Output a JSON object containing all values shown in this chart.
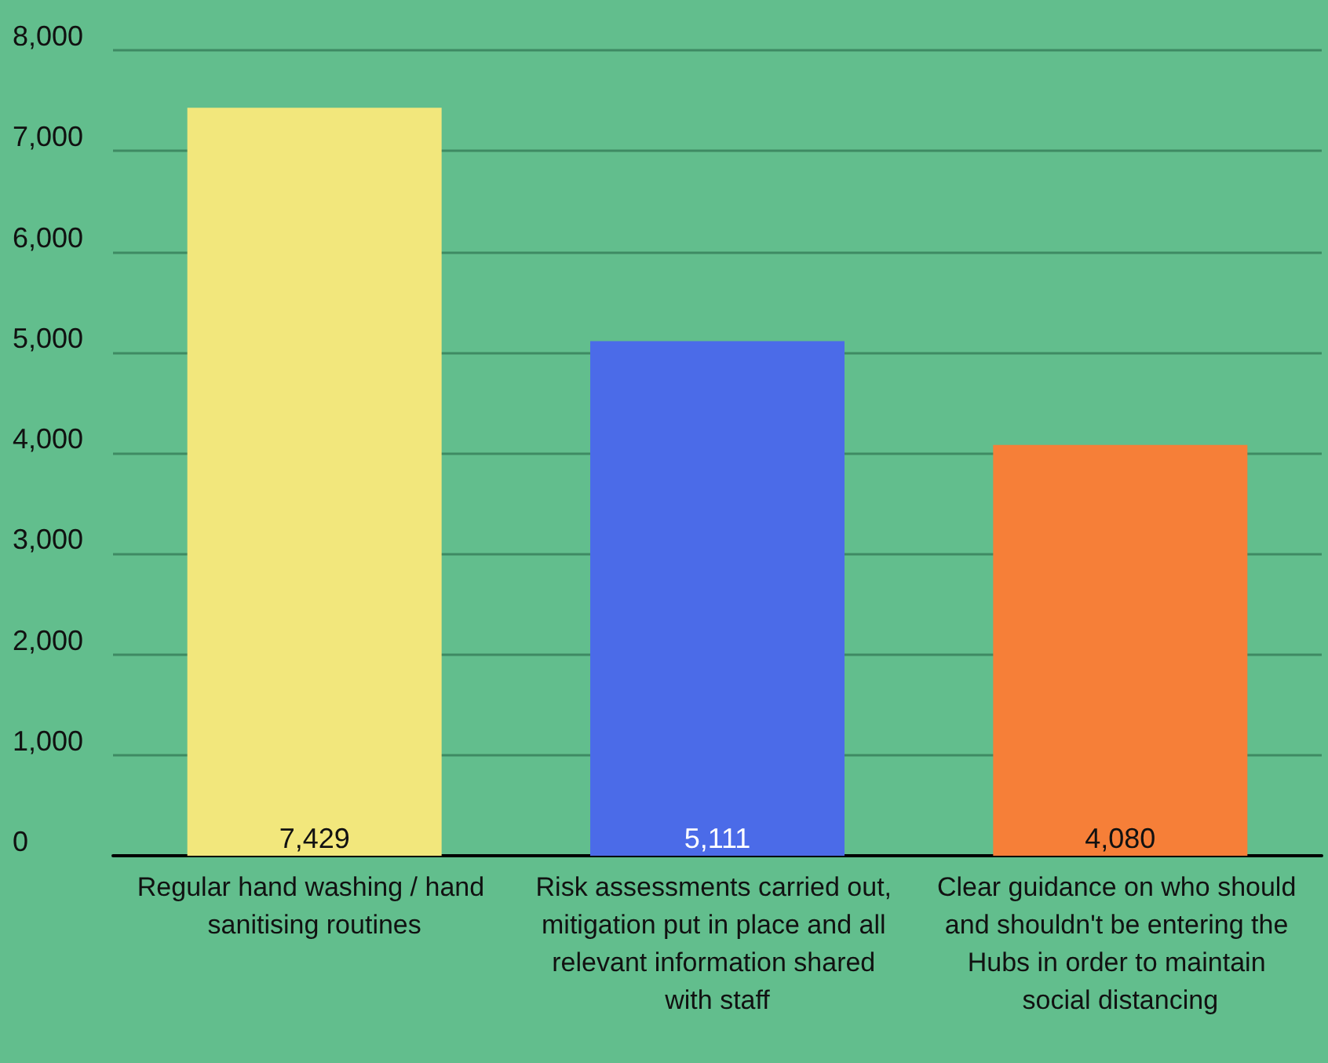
{
  "chart_data": {
    "type": "bar",
    "categories": [
      "Regular hand washing / hand sanitising routines",
      "Risk assessments carried out, mitigation put in place and all relevant information shared with staff",
      "Clear guidance on who should and shouldn't be entering the Hubs in order to maintain social distancing"
    ],
    "values": [
      7429,
      5111,
      4080
    ],
    "colors": [
      "#f2e77c",
      "#4b6be8",
      "#f67f38"
    ],
    "value_labels": [
      "7,429",
      "5,111",
      "4,080"
    ],
    "ylim": [
      0,
      8000
    ],
    "yticks": [
      0,
      {
        "value": 1000,
        "label": "1,000"
      },
      {
        "value": 2000,
        "label": "2,000"
      },
      {
        "value": 3000,
        "label": "3,000"
      },
      {
        "value": 4000,
        "label": "4,000"
      },
      {
        "value": 5000,
        "label": "5,000"
      },
      {
        "value": 6000,
        "label": "6,000"
      },
      {
        "value": 7000,
        "label": "7,000"
      },
      {
        "value": 8000,
        "label": "8,000"
      }
    ],
    "grid": "y"
  }
}
